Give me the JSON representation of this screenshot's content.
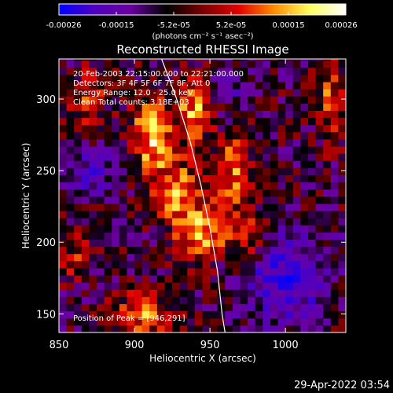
{
  "chart_data": {
    "type": "heatmap",
    "title": "Reconstructed RHESSI Image",
    "xlabel": "Heliocentric X (arcsec)",
    "ylabel": "Heliocentric Y (arcsec)",
    "x_ticks": [
      850,
      900,
      950,
      1000
    ],
    "y_ticks": [
      150,
      200,
      250,
      300
    ],
    "xlim": [
      850,
      1040
    ],
    "ylim": [
      137,
      328
    ],
    "colorbar": {
      "ticks": [
        "-0.00026",
        "-0.00015",
        "-5.2e-05",
        "5.2e-05",
        "0.00015",
        "0.00026"
      ],
      "range": [
        -0.00026,
        0.00026
      ],
      "unit_label": "(photons cm⁻² s⁻¹ asec⁻²)",
      "colors": [
        "#0000ff",
        "#5000c0",
        "#6a00a0",
        "#000000",
        "#7a0000",
        "#e00000",
        "#ff8c00",
        "#ffff60",
        "#ffffff"
      ]
    },
    "info": [
      "20-Feb-2003 22:15:00.000 to 22:21:00.000",
      "Detectors: 3F 4F 5F 6F 7F 8F, Att 0",
      "Energy Range: 12.0 - 25.0 keV",
      "Clean    Total counts: 3.18E+03"
    ],
    "peak_label": "Position of Peak = [946,291]",
    "limb_curve": [
      [
        918,
        328
      ],
      [
        928,
        300
      ],
      [
        937,
        270
      ],
      [
        944,
        240
      ],
      [
        950,
        210
      ],
      [
        955,
        180
      ],
      [
        958,
        150
      ],
      [
        960,
        137
      ]
    ]
  },
  "footer": {
    "date": "29-Apr-2022 03:54"
  }
}
